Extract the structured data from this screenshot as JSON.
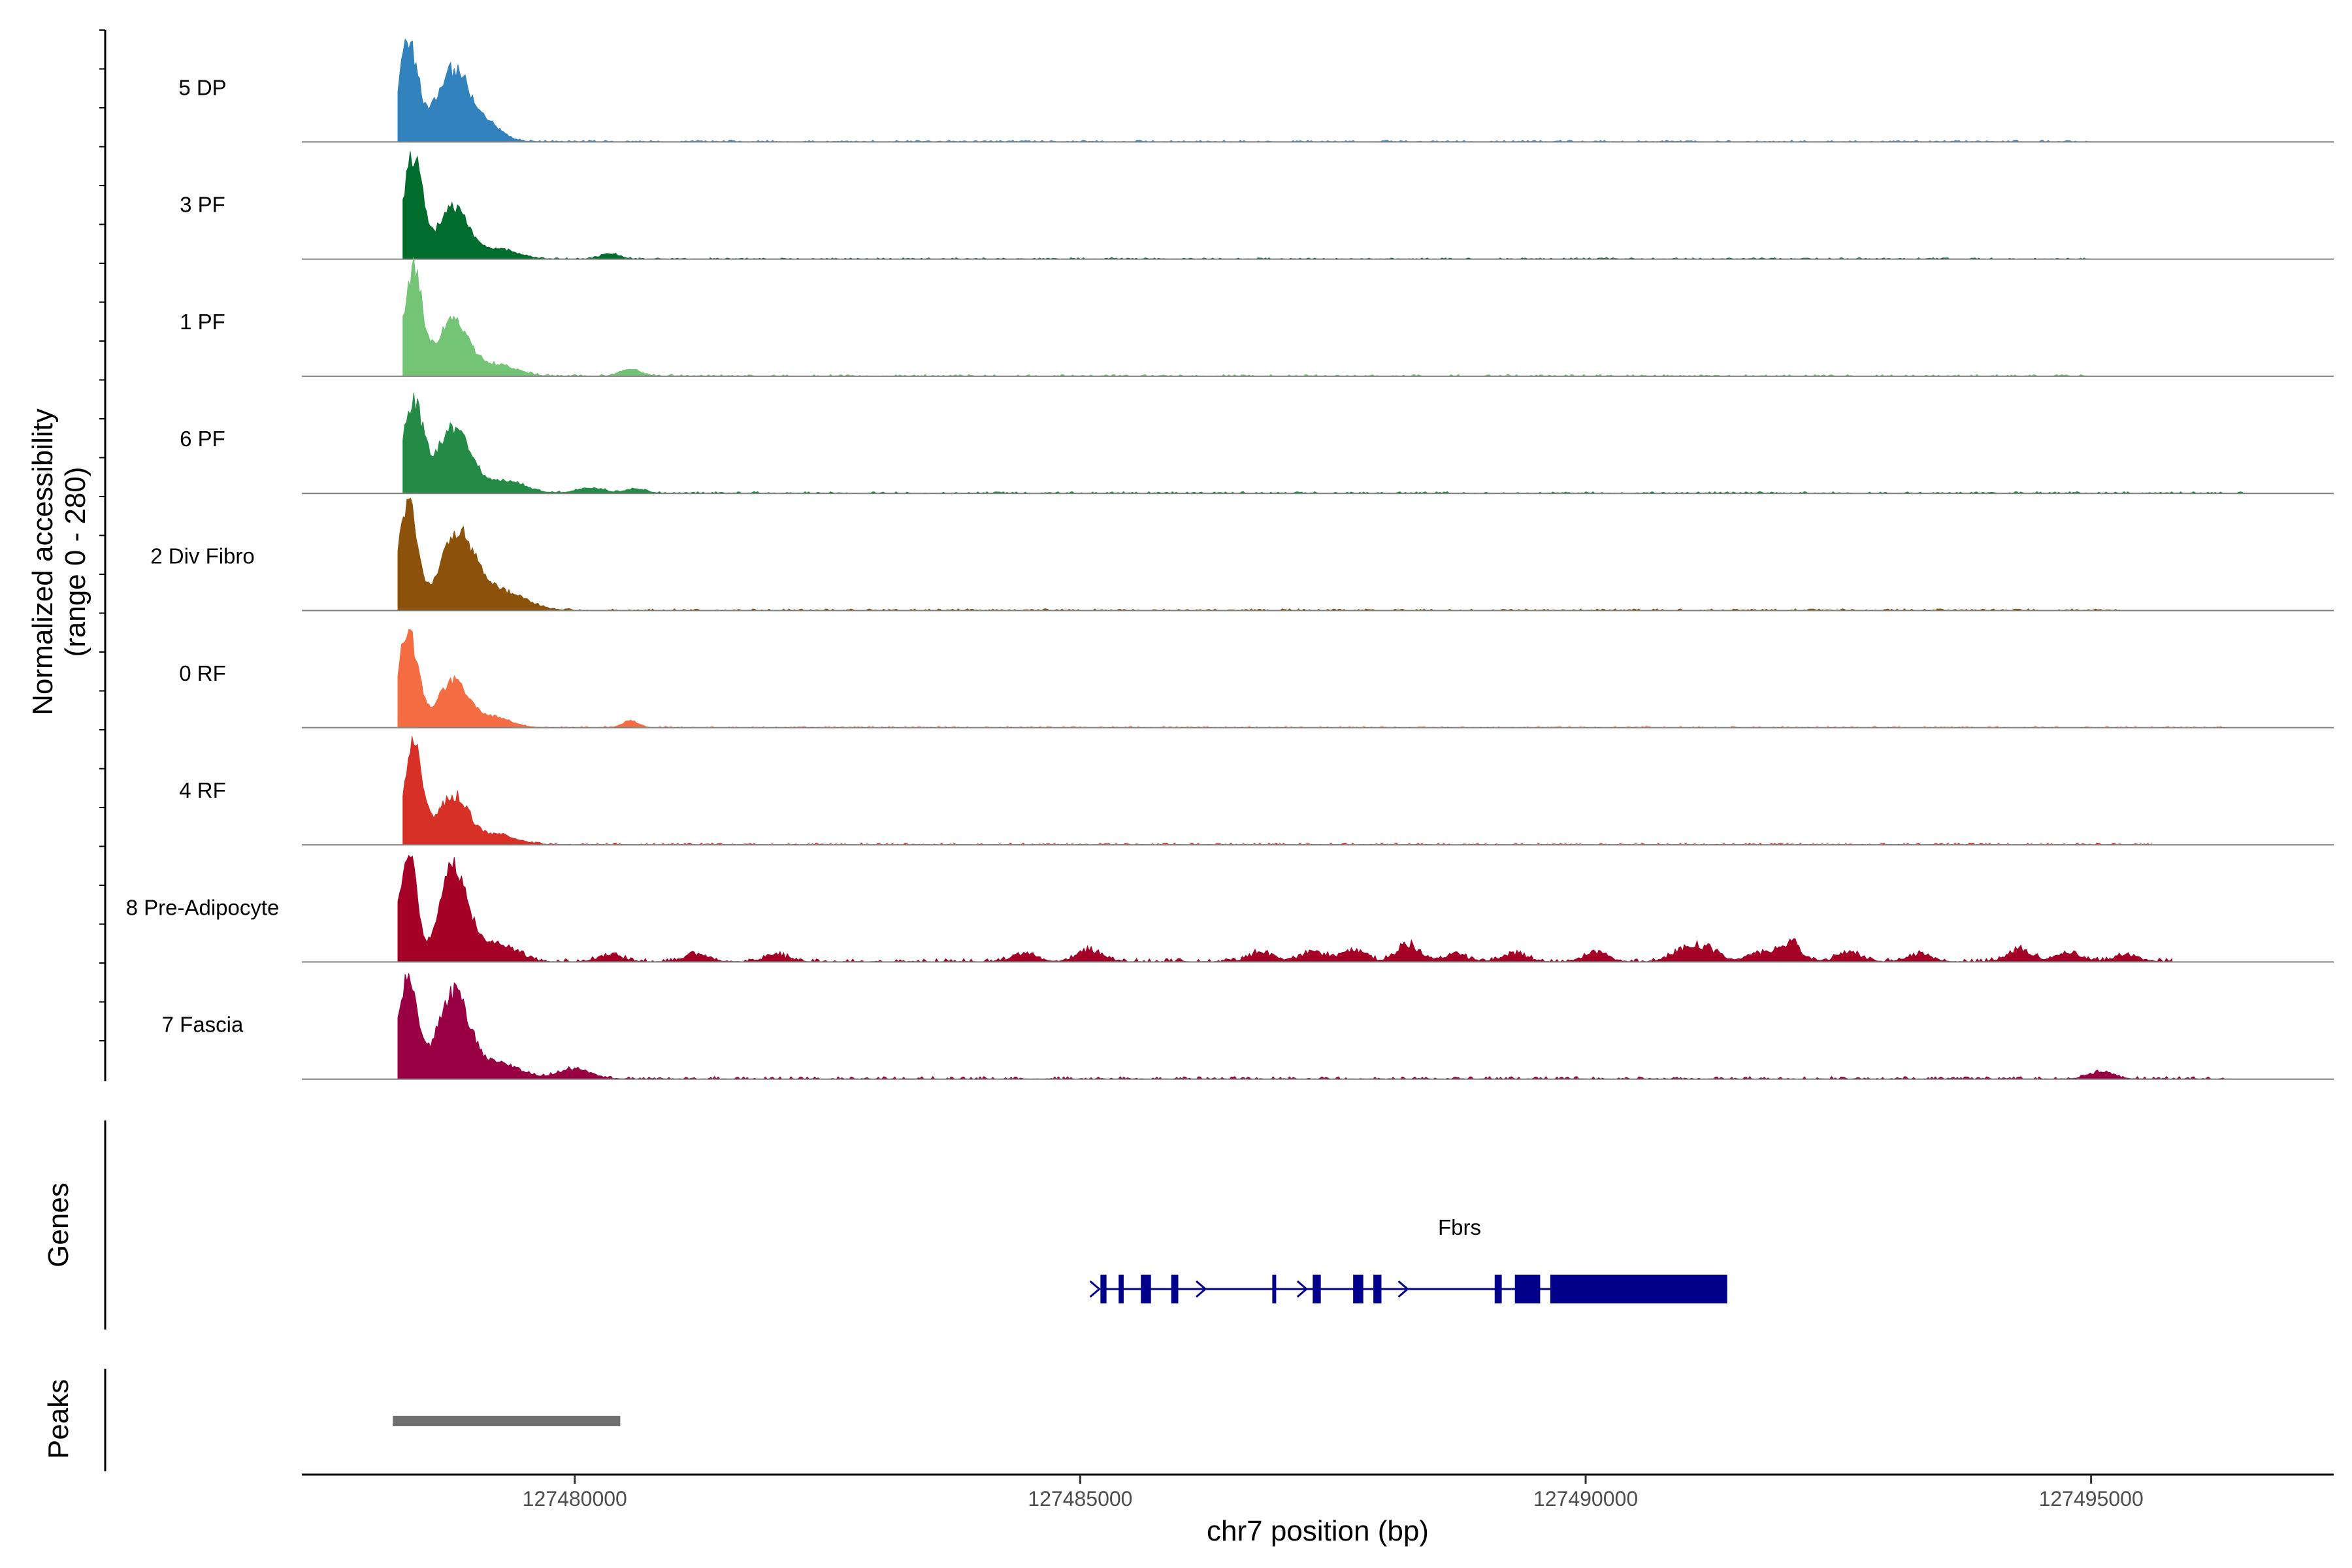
{
  "chart_data": {
    "type": "area",
    "subtype": "genome-coverage-track",
    "ylabel": "Normalized accessibility",
    "ylabel_range": "(range 0 - 280)",
    "y_range": [
      0,
      280
    ],
    "xlabel": "chr7 position (bp)",
    "xlim": [
      127477300,
      127497400
    ],
    "x_ticks": [
      127480000,
      127485000,
      127490000,
      127495000
    ],
    "x_tick_labels": [
      "127480000",
      "127485000",
      "127490000",
      "127495000"
    ],
    "series": [
      {
        "name": "5 DP",
        "color": "#3182BD",
        "peaks": [
          [
            127478350,
            220,
            95
          ],
          [
            127478800,
            160,
            170
          ],
          [
            127479150,
            30,
            150
          ]
        ],
        "tail_end": 127495000,
        "tail_level": 4,
        "tail_bumps": []
      },
      {
        "name": "3 PF",
        "color": "#006D2C",
        "peaks": [
          [
            127478400,
            230,
            90
          ],
          [
            127478800,
            115,
            150
          ],
          [
            127479250,
            22,
            180
          ],
          [
            127480350,
            12,
            90
          ]
        ],
        "tail_end": 127495000,
        "tail_level": 3,
        "tail_bumps": []
      },
      {
        "name": "1 PF",
        "color": "#74C476",
        "peaks": [
          [
            127478400,
            240,
            90
          ],
          [
            127478800,
            130,
            150
          ],
          [
            127479250,
            25,
            180
          ],
          [
            127480550,
            16,
            100
          ]
        ],
        "tail_end": 127495000,
        "tail_level": 4,
        "tail_bumps": []
      },
      {
        "name": "6 PF",
        "color": "#238B45",
        "peaks": [
          [
            127478400,
            205,
            95
          ],
          [
            127478800,
            150,
            160
          ],
          [
            127479300,
            28,
            200
          ],
          [
            127480150,
            12,
            130
          ],
          [
            127480600,
            10,
            100
          ]
        ],
        "tail_end": 127496500,
        "tail_level": 4,
        "tail_bumps": []
      },
      {
        "name": "2 Div Fibro",
        "color": "#8C510A",
        "peaks": [
          [
            127478350,
            240,
            95
          ],
          [
            127478850,
            175,
            170
          ],
          [
            127479300,
            40,
            220
          ]
        ],
        "tail_end": 127495300,
        "tail_level": 4,
        "tail_bumps": []
      },
      {
        "name": "0 RF",
        "color": "#F46D43",
        "peaks": [
          [
            127478350,
            220,
            95
          ],
          [
            127478800,
            105,
            150
          ],
          [
            127479200,
            22,
            170
          ],
          [
            127480550,
            15,
            80
          ]
        ],
        "tail_end": 127496300,
        "tail_level": 3,
        "tail_bumps": []
      },
      {
        "name": "4 RF",
        "color": "#D73027",
        "peaks": [
          [
            127478400,
            230,
            90
          ],
          [
            127478800,
            110,
            150
          ],
          [
            127479250,
            22,
            180
          ]
        ],
        "tail_end": 127495600,
        "tail_level": 4,
        "tail_bumps": []
      },
      {
        "name": "8 Pre-Adipocyte",
        "color": "#A50026",
        "peaks": [
          [
            127478350,
            250,
            85
          ],
          [
            127478800,
            215,
            130
          ],
          [
            127479150,
            40,
            150
          ]
        ],
        "tail_end": 127495800,
        "tail_level": 8,
        "tail_bumps": [
          [
            127479400,
            18
          ],
          [
            127480350,
            15
          ],
          [
            127481200,
            17
          ],
          [
            127482000,
            14
          ],
          [
            127484450,
            18
          ],
          [
            127485100,
            28
          ],
          [
            127486800,
            20
          ],
          [
            127487300,
            22
          ],
          [
            127487700,
            25
          ],
          [
            127488250,
            38
          ],
          [
            127488700,
            16
          ],
          [
            127489300,
            20
          ],
          [
            127490100,
            22
          ],
          [
            127490950,
            26
          ],
          [
            127491200,
            30
          ],
          [
            127491700,
            18
          ],
          [
            127492000,
            42
          ],
          [
            127492600,
            20
          ],
          [
            127493300,
            18
          ],
          [
            127494300,
            28
          ],
          [
            127494800,
            20
          ],
          [
            127495350,
            16
          ]
        ]
      },
      {
        "name": "7 Fascia",
        "color": "#980043",
        "peaks": [
          [
            127478350,
            230,
            95
          ],
          [
            127478800,
            195,
            155
          ],
          [
            127479250,
            35,
            200
          ],
          [
            127480000,
            22,
            160
          ]
        ],
        "tail_end": 127496400,
        "tail_level": 6,
        "tail_bumps": [
          [
            127495100,
            16
          ]
        ]
      }
    ],
    "genes_track_label": "Genes",
    "genes": [
      {
        "name": "Fbrs",
        "color": "#00008B",
        "start": 127485200,
        "end": 127491400,
        "strand": "+",
        "exons": [
          [
            127485200,
            127485260
          ],
          [
            127485380,
            127485430
          ],
          [
            127485600,
            127485700
          ],
          [
            127485900,
            127485970
          ],
          [
            127486900,
            127486930
          ],
          [
            127487300,
            127487380
          ],
          [
            127487700,
            127487800
          ],
          [
            127487900,
            127487980
          ],
          [
            127489100,
            127489170
          ],
          [
            127489300,
            127489550
          ],
          [
            127489650,
            127491400
          ]
        ],
        "arrows": [
          127485150,
          127486200,
          127487200,
          127488200
        ]
      }
    ],
    "peaks_track_label": "Peaks",
    "peak_regions": [
      {
        "start": 127478200,
        "end": 127480450,
        "color": "#707070"
      }
    ]
  }
}
